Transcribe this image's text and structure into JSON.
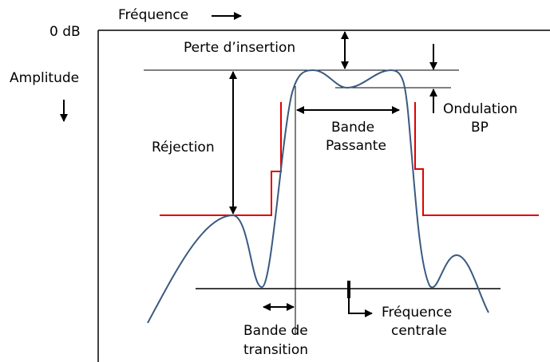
{
  "axis": {
    "x_label": "Fréquence",
    "zero": "0 dB",
    "y_label": "Amplitude"
  },
  "labels": {
    "insertion_loss": "Perte d’insertion",
    "rejection": "Réjection",
    "passband": [
      "Bande",
      "Passante"
    ],
    "ripple": [
      "Ondulation",
      "BP"
    ],
    "transition": [
      "Bande de",
      "transition"
    ],
    "center": [
      "Fréquence",
      "centrale"
    ]
  }
}
